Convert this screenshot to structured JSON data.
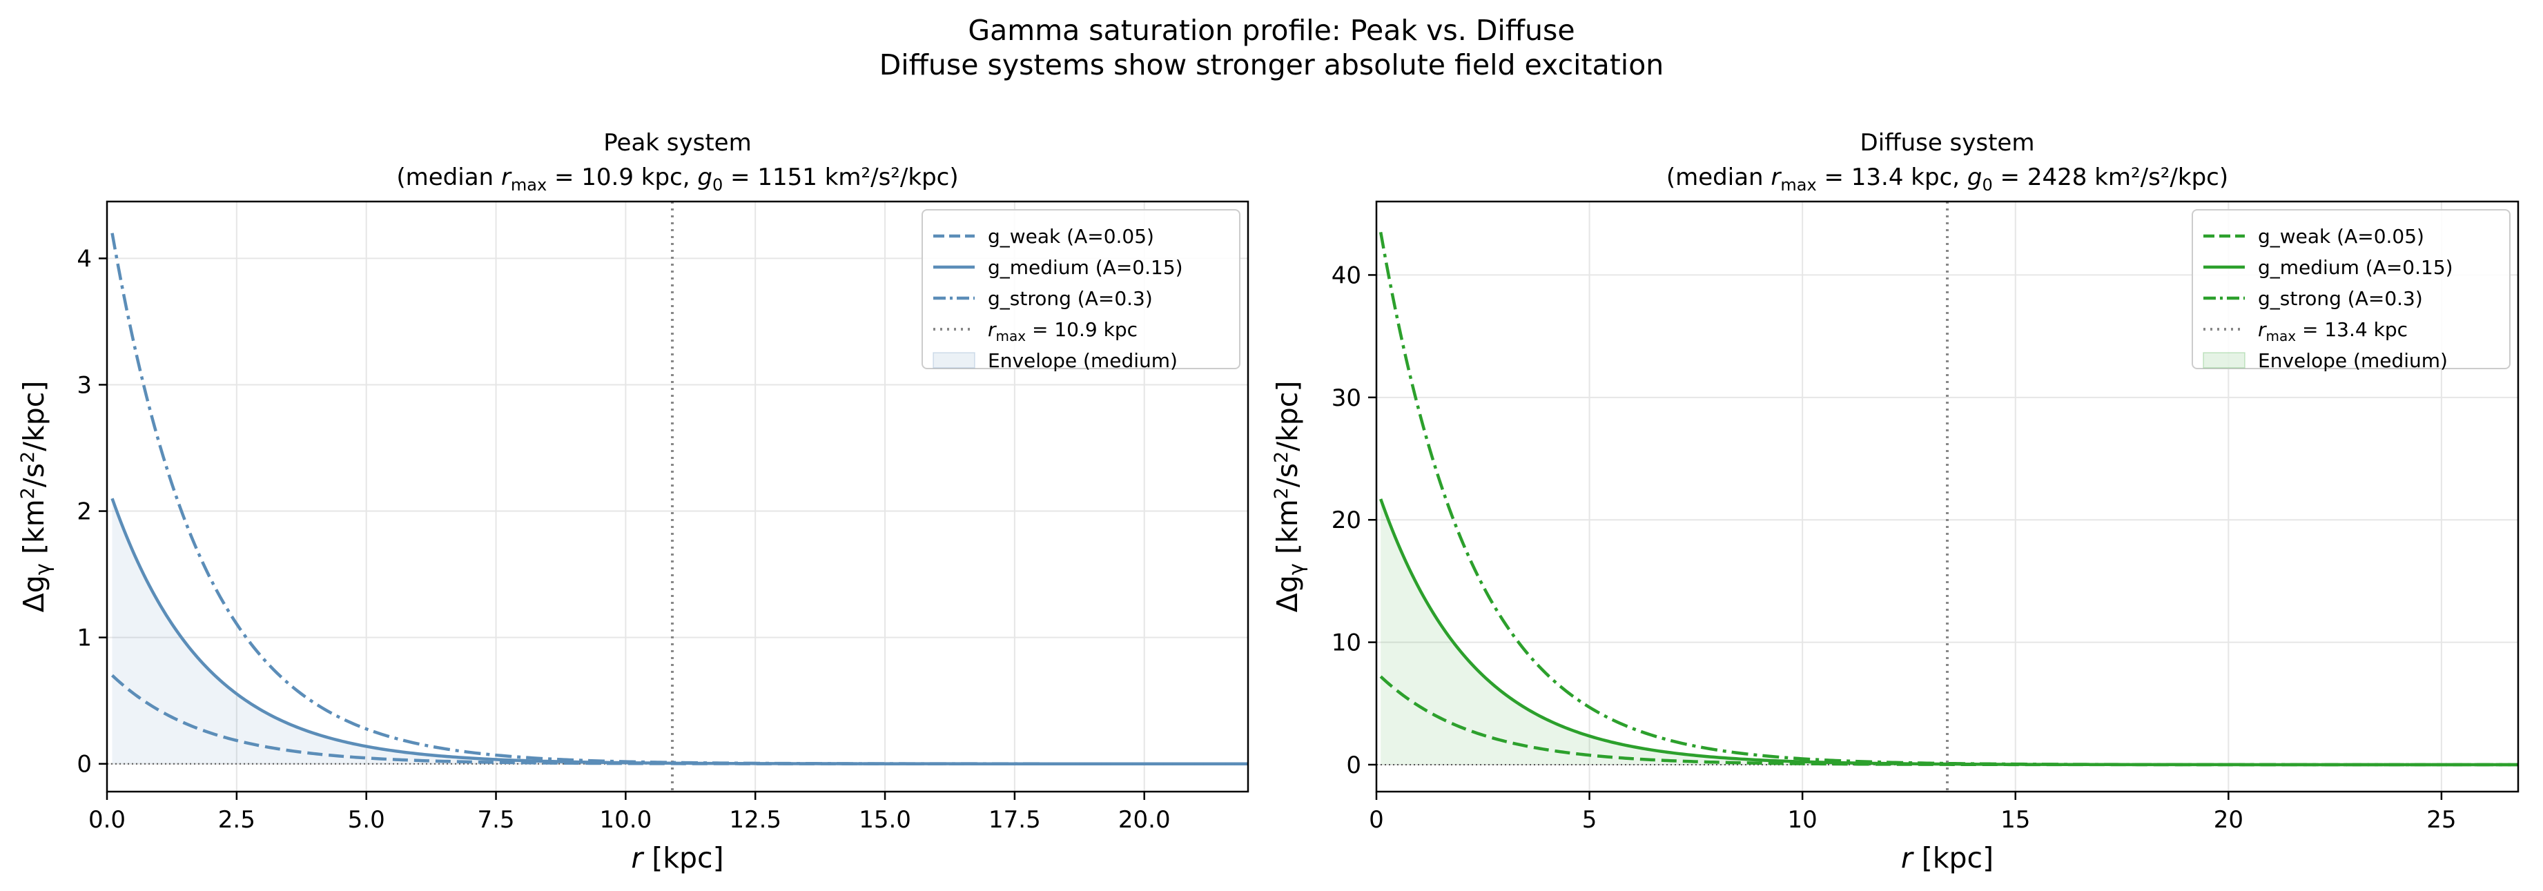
{
  "figure": {
    "title_line1": "Gamma saturation profile: Peak vs. Diffuse",
    "title_line2": "Diffuse systems show stronger absolute field excitation"
  },
  "chart_data": [
    {
      "type": "line",
      "title": "Peak system",
      "subtitle": {
        "prefix": "(median ",
        "rmax_value": " = 10.9 kpc, ",
        "g0_value": " = 1151 km²/s²/kpc)"
      },
      "color": "#5b8db8",
      "xlabel": "r [kpc]",
      "ylabel": "Δg_γ [km²/s²/kpc]",
      "xlim": [
        0,
        22
      ],
      "ylim": [
        -0.22,
        4.45
      ],
      "xticks": [
        0,
        2.5,
        5,
        7.5,
        10,
        12.5,
        15,
        17.5,
        20
      ],
      "xtick_labels": [
        "0.0",
        "2.5",
        "5.0",
        "7.5",
        "10.0",
        "12.5",
        "15.0",
        "17.5",
        "20.0"
      ],
      "yticks": [
        0,
        1,
        2,
        3,
        4
      ],
      "ytick_labels": [
        "0",
        "1",
        "2",
        "3",
        "4"
      ],
      "grid": true,
      "legend_position": "top-right",
      "r_max": 10.9,
      "x_start": 0.1,
      "decay_length": 1.8,
      "series": [
        {
          "name": "g_weak (A=0.05)",
          "style": "dashed",
          "amplitude": 0.7
        },
        {
          "name": "g_medium (A=0.15)",
          "style": "solid",
          "amplitude": 2.1
        },
        {
          "name": "g_strong (A=0.3)",
          "style": "dashdot",
          "amplitude": 4.2
        }
      ],
      "vline_label": " = 10.9 kpc",
      "envelope_label": "Envelope (medium)"
    },
    {
      "type": "line",
      "title": "Diffuse system",
      "subtitle": {
        "prefix": "(median ",
        "rmax_value": " = 13.4 kpc, ",
        "g0_value": " = 2428 km²/s²/kpc)"
      },
      "color": "#2ca02c",
      "xlabel": "r [kpc]",
      "ylabel": "Δg_γ [km²/s²/kpc]",
      "xlim": [
        0,
        26.8
      ],
      "ylim": [
        -2.2,
        46
      ],
      "xticks": [
        0,
        5,
        10,
        15,
        20,
        25
      ],
      "xtick_labels": [
        "0",
        "5",
        "10",
        "15",
        "20",
        "25"
      ],
      "yticks": [
        0,
        10,
        20,
        30,
        40
      ],
      "ytick_labels": [
        "0",
        "10",
        "20",
        "30",
        "40"
      ],
      "grid": true,
      "legend_position": "top-right",
      "r_max": 13.4,
      "x_start": 0.1,
      "decay_length": 2.2,
      "series": [
        {
          "name": "g_weak (A=0.05)",
          "style": "dashed",
          "amplitude": 7.2
        },
        {
          "name": "g_medium (A=0.15)",
          "style": "solid",
          "amplitude": 21.7
        },
        {
          "name": "g_strong (A=0.3)",
          "style": "dashdot",
          "amplitude": 43.5
        }
      ],
      "vline_label": " = 13.4 kpc",
      "envelope_label": "Envelope (medium)"
    }
  ]
}
